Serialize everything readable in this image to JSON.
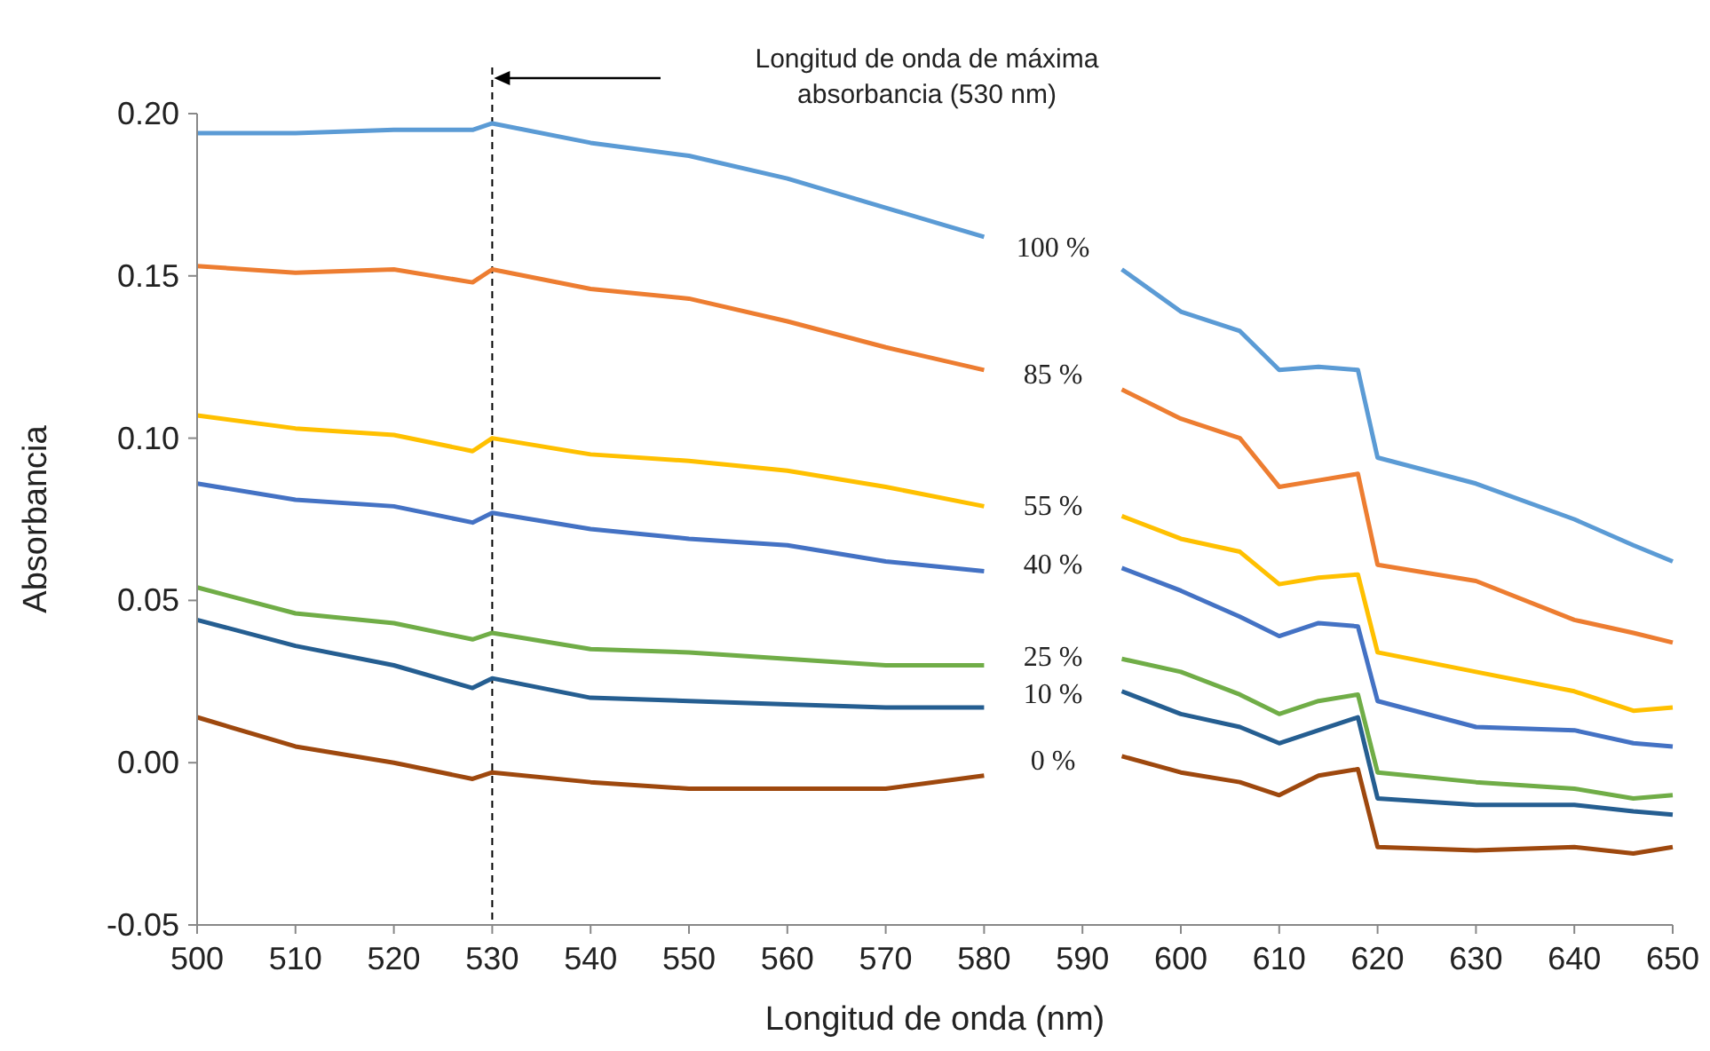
{
  "chart_data": {
    "type": "line",
    "xlabel": "Longitud de onda (nm)",
    "ylabel": "Absorbancia",
    "x": [
      500,
      510,
      520,
      528,
      530,
      540,
      550,
      560,
      570,
      580,
      587,
      594,
      600,
      606,
      610,
      614,
      618,
      620,
      630,
      640,
      646,
      650
    ],
    "series": [
      {
        "name": "100 %",
        "color": "#5b9bd5",
        "values": [
          0.194,
          0.194,
          0.195,
          0.195,
          0.197,
          0.191,
          0.187,
          0.18,
          0.171,
          0.162,
          null,
          0.152,
          0.139,
          0.133,
          0.121,
          0.122,
          0.121,
          0.094,
          0.086,
          0.075,
          0.067,
          0.062
        ]
      },
      {
        "name": "85 %",
        "color": "#ed7d31",
        "values": [
          0.153,
          0.151,
          0.152,
          0.148,
          0.152,
          0.146,
          0.143,
          0.136,
          0.128,
          0.121,
          null,
          0.115,
          0.106,
          0.1,
          0.085,
          0.087,
          0.089,
          0.061,
          0.056,
          0.044,
          0.04,
          0.037
        ]
      },
      {
        "name": "55 %",
        "color": "#ffc000",
        "values": [
          0.107,
          0.103,
          0.101,
          0.096,
          0.1,
          0.095,
          0.093,
          0.09,
          0.085,
          0.079,
          null,
          0.076,
          0.069,
          0.065,
          0.055,
          0.057,
          0.058,
          0.034,
          0.028,
          0.022,
          0.016,
          0.017
        ]
      },
      {
        "name": "40 %",
        "color": "#4472c4",
        "values": [
          0.086,
          0.081,
          0.079,
          0.074,
          0.077,
          0.072,
          0.069,
          0.067,
          0.062,
          0.059,
          null,
          0.06,
          0.053,
          0.045,
          0.039,
          0.043,
          0.042,
          0.019,
          0.011,
          0.01,
          0.006,
          0.005
        ]
      },
      {
        "name": "25 %",
        "color": "#70ad47",
        "values": [
          0.054,
          0.046,
          0.043,
          0.038,
          0.04,
          0.035,
          0.034,
          0.032,
          0.03,
          0.03,
          null,
          0.032,
          0.028,
          0.021,
          0.015,
          0.019,
          0.021,
          -0.003,
          -0.006,
          -0.008,
          -0.011,
          -0.01
        ]
      },
      {
        "name": "10 %",
        "color": "#255e91",
        "values": [
          0.044,
          0.036,
          0.03,
          0.023,
          0.026,
          0.02,
          0.019,
          0.018,
          0.017,
          0.017,
          null,
          0.022,
          0.015,
          0.011,
          0.006,
          0.01,
          0.014,
          -0.011,
          -0.013,
          -0.013,
          -0.015,
          -0.016
        ]
      },
      {
        "name": "0 %",
        "color": "#9e480e",
        "values": [
          0.014,
          0.005,
          0.0,
          -0.005,
          -0.003,
          -0.006,
          -0.008,
          -0.008,
          -0.008,
          -0.004,
          null,
          0.002,
          -0.003,
          -0.006,
          -0.01,
          -0.004,
          -0.002,
          -0.026,
          -0.027,
          -0.026,
          -0.028,
          -0.026
        ]
      }
    ],
    "xlim": [
      500,
      650
    ],
    "xticks": [
      500,
      510,
      520,
      530,
      540,
      550,
      560,
      570,
      580,
      590,
      600,
      610,
      620,
      630,
      640,
      650
    ],
    "ylim": [
      -0.05,
      0.2
    ],
    "yticks": [
      {
        "value": -0.05,
        "label": "-0.05"
      },
      {
        "value": 0,
        "label": "0.00"
      },
      {
        "value": 0.05,
        "label": "0.05"
      },
      {
        "value": 0.1,
        "label": "0.10"
      },
      {
        "value": 0.15,
        "label": "0.15"
      },
      {
        "value": 0.2,
        "label": "0.20"
      }
    ],
    "ref_lines": [
      {
        "axis": "x",
        "value": 530,
        "color": "#000000",
        "line_style": "dashed"
      }
    ],
    "annotations": [
      "Longitud de onda de máxima absorbancia (530 nm)"
    ],
    "grid": false,
    "legend": false,
    "marker": "none",
    "line_style": "solid"
  }
}
